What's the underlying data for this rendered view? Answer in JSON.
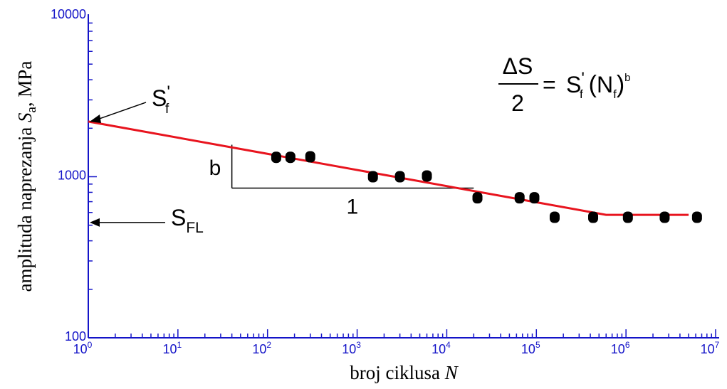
{
  "chart_data": {
    "type": "scatter",
    "scale": {
      "x": "log",
      "y": "log"
    },
    "xlim": [
      1,
      10000000
    ],
    "ylim": [
      100,
      10000
    ],
    "xlabel": {
      "text": "broj ciklusa ",
      "var": "N"
    },
    "ylabel": {
      "text": "amplituda naprezanja ",
      "var": "S",
      "sub": "a",
      "unit": ", MPa"
    },
    "x_ticks": [
      {
        "base": "10",
        "exp": "0",
        "value": 1
      },
      {
        "base": "10",
        "exp": "1",
        "value": 10
      },
      {
        "base": "10",
        "exp": "2",
        "value": 100
      },
      {
        "base": "10",
        "exp": "3",
        "value": 1000
      },
      {
        "base": "10",
        "exp": "4",
        "value": 10000
      },
      {
        "base": "10",
        "exp": "5",
        "value": 100000
      },
      {
        "base": "10",
        "exp": "6",
        "value": 1000000
      },
      {
        "base": "10",
        "exp": "7",
        "value": 10000000
      }
    ],
    "y_ticks": [
      {
        "label": "100",
        "value": 100
      },
      {
        "label": "1000",
        "value": 1000
      },
      {
        "label": "10000",
        "value": 10000
      }
    ],
    "points": [
      {
        "x": 125,
        "y": 1320
      },
      {
        "x": 180,
        "y": 1320
      },
      {
        "x": 300,
        "y": 1330
      },
      {
        "x": 1500,
        "y": 1000
      },
      {
        "x": 3000,
        "y": 1000
      },
      {
        "x": 6000,
        "y": 1010
      },
      {
        "x": 22000,
        "y": 740
      },
      {
        "x": 65000,
        "y": 740
      },
      {
        "x": 95000,
        "y": 740
      },
      {
        "x": 160000,
        "y": 560
      },
      {
        "x": 430000,
        "y": 560
      },
      {
        "x": 1050000,
        "y": 560
      },
      {
        "x": 2700000,
        "y": 560
      },
      {
        "x": 6200000,
        "y": 560
      }
    ],
    "fit_line": {
      "color": "#e8141e",
      "points": [
        {
          "x": 1,
          "y": 2200
        },
        {
          "x": 600000,
          "y": 580
        },
        {
          "x": 5000000,
          "y": 580
        }
      ]
    },
    "slope_triangle": {
      "x1": 40,
      "x2": 20000,
      "y_low": 850,
      "y_high": 1580,
      "b_label": "b",
      "run_label": "1"
    },
    "annotations": {
      "sf": {
        "main": "S",
        "prime": "'",
        "sub": "f",
        "y": 2200
      },
      "sfl": {
        "main": "S",
        "sub": "FL",
        "y": 520
      }
    },
    "formula": {
      "numerator": "ΔS",
      "denominator": "2",
      "equals": "=",
      "s": "S",
      "prime": "'",
      "f_sub": "f",
      "open_paren": "(",
      "n": "N",
      "n_sub": "f",
      "close_paren": ")",
      "exponent": "b"
    },
    "colors": {
      "axes": "#1414c8",
      "fit": "#e8141e",
      "points": "#000000"
    }
  }
}
